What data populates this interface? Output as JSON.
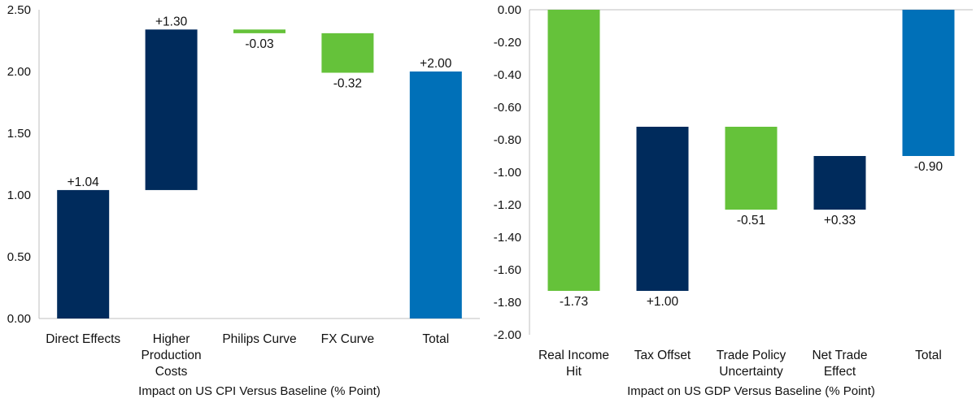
{
  "colors": {
    "dark": "#002b5c",
    "green": "#65c23a",
    "total": "#0070b8"
  },
  "chart_data": [
    {
      "type": "bar",
      "subtype": "waterfall",
      "xlabel": "Impact on US CPI Versus Baseline (% Point)",
      "ylim": [
        0,
        2.5
      ],
      "yticks": [
        "0.00",
        "0.50",
        "1.00",
        "1.50",
        "2.00",
        "2.50"
      ],
      "grid": false,
      "legend": "none",
      "categories": [
        [
          "Direct Effects"
        ],
        [
          "Higher",
          "Production",
          "Costs"
        ],
        [
          "Philips Curve"
        ],
        [
          "FX Curve"
        ],
        [
          "Total"
        ]
      ],
      "bars": [
        {
          "start": 0,
          "end": 1.04,
          "label": "+1.04",
          "color": "dark",
          "label_pos": "above"
        },
        {
          "start": 1.04,
          "end": 2.34,
          "label": "+1.30",
          "color": "dark",
          "label_pos": "above"
        },
        {
          "start": 2.34,
          "end": 2.31,
          "label": "-0.03",
          "color": "green",
          "label_pos": "below"
        },
        {
          "start": 2.31,
          "end": 1.99,
          "label": "-0.32",
          "color": "green",
          "label_pos": "below"
        },
        {
          "start": 0,
          "end": 2.0,
          "label": "+2.00",
          "color": "total",
          "label_pos": "above"
        }
      ]
    },
    {
      "type": "bar",
      "subtype": "waterfall",
      "xlabel": "Impact on US GDP Versus Baseline (% Point)",
      "ylim": [
        -2.0,
        0
      ],
      "yticks": [
        "0.00",
        "-0.20",
        "-0.40",
        "-0.60",
        "-0.80",
        "-1.00",
        "-1.20",
        "-1.40",
        "-1.60",
        "-1.80",
        "-2.00"
      ],
      "grid": false,
      "legend": "none",
      "categories": [
        [
          "Real Income",
          "Hit"
        ],
        [
          "Tax Offset"
        ],
        [
          "Trade Policy",
          "Uncertainty"
        ],
        [
          "Net Trade",
          "Effect"
        ],
        [
          "Total"
        ]
      ],
      "bars": [
        {
          "start": 0,
          "end": -1.73,
          "label": "-1.73",
          "color": "green",
          "label_pos": "below"
        },
        {
          "start": -1.73,
          "end": -0.72,
          "label": "+1.00",
          "color": "dark",
          "label_pos": "below"
        },
        {
          "start": -0.72,
          "end": -1.23,
          "label": "-0.51",
          "color": "green",
          "label_pos": "below"
        },
        {
          "start": -1.23,
          "end": -0.9,
          "label": "+0.33",
          "color": "dark",
          "label_pos": "below"
        },
        {
          "start": 0,
          "end": -0.9,
          "label": "-0.90",
          "color": "total",
          "label_pos": "below"
        }
      ]
    }
  ]
}
